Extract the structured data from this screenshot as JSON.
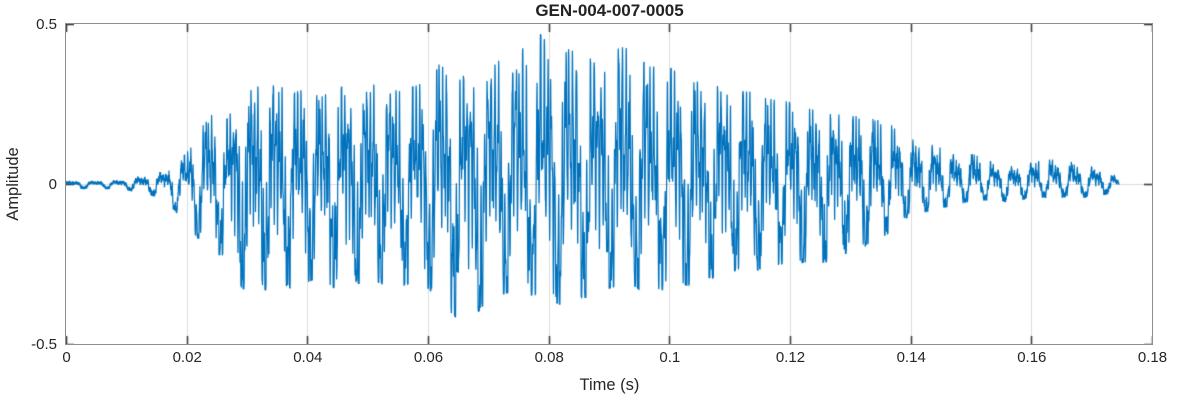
{
  "chart_data": {
    "type": "line",
    "title": "GEN-004-007-0005",
    "xlabel": "Time (s)",
    "ylabel": "Amplitude",
    "xlim": [
      0,
      0.18
    ],
    "ylim": [
      -0.5,
      0.5
    ],
    "xticks": [
      0,
      0.02,
      0.04,
      0.06,
      0.08,
      0.1,
      0.12,
      0.14,
      0.16,
      0.18
    ],
    "xtick_labels": [
      "0",
      "0.02",
      "0.04",
      "0.06",
      "0.08",
      "0.1",
      "0.12",
      "0.14",
      "0.16",
      "0.18"
    ],
    "yticks": [
      0.5,
      0,
      -0.5
    ],
    "ytick_labels": [
      "0.5",
      "0",
      "-0.5"
    ],
    "grid": {
      "vertical_at_xticks": true,
      "horizontal_at": [
        0
      ],
      "color": "#dcdcdc"
    },
    "line_color": "#0072BD",
    "axis_box_color": "#8e8e8e",
    "tick_color": "#3f3f3f",
    "text_color": "#262626",
    "background": "#ffffff",
    "legend": null,
    "signal": {
      "t_start": 0,
      "t_end": 0.1745,
      "pitch_hz": 258,
      "envelope_note": "triples of [time_s, min_amplitude, max_amplitude] read from the plot",
      "envelope": [
        [
          0.0,
          -0.012,
          0.006
        ],
        [
          0.002,
          -0.012,
          0.006
        ],
        [
          0.004,
          -0.012,
          0.006
        ],
        [
          0.006,
          -0.012,
          0.007
        ],
        [
          0.008,
          -0.012,
          0.008
        ],
        [
          0.01,
          -0.014,
          0.01
        ],
        [
          0.012,
          -0.022,
          0.018
        ],
        [
          0.014,
          -0.028,
          0.022
        ],
        [
          0.016,
          -0.042,
          0.032
        ],
        [
          0.018,
          -0.075,
          0.045
        ],
        [
          0.02,
          -0.125,
          0.095
        ],
        [
          0.022,
          -0.165,
          0.165
        ],
        [
          0.024,
          -0.215,
          0.21
        ],
        [
          0.026,
          -0.215,
          0.175
        ],
        [
          0.028,
          -0.3,
          0.24
        ],
        [
          0.03,
          -0.33,
          0.28
        ],
        [
          0.032,
          -0.32,
          0.3
        ],
        [
          0.034,
          -0.33,
          0.31
        ],
        [
          0.036,
          -0.305,
          0.295
        ],
        [
          0.038,
          -0.33,
          0.28
        ],
        [
          0.04,
          -0.3,
          0.295
        ],
        [
          0.042,
          -0.285,
          0.265
        ],
        [
          0.044,
          -0.315,
          0.28
        ],
        [
          0.046,
          -0.33,
          0.3
        ],
        [
          0.048,
          -0.3,
          0.285
        ],
        [
          0.05,
          -0.32,
          0.295
        ],
        [
          0.052,
          -0.3,
          0.31
        ],
        [
          0.054,
          -0.33,
          0.285
        ],
        [
          0.056,
          -0.31,
          0.29
        ],
        [
          0.058,
          -0.3,
          0.3
        ],
        [
          0.06,
          -0.32,
          0.315
        ],
        [
          0.062,
          -0.36,
          0.37
        ],
        [
          0.064,
          -0.4,
          0.33
        ],
        [
          0.066,
          -0.435,
          0.33
        ],
        [
          0.068,
          -0.4,
          0.34
        ],
        [
          0.07,
          -0.355,
          0.335
        ],
        [
          0.072,
          -0.34,
          0.395
        ],
        [
          0.074,
          -0.33,
          0.365
        ],
        [
          0.076,
          -0.345,
          0.425
        ],
        [
          0.078,
          -0.34,
          0.475
        ],
        [
          0.08,
          -0.36,
          0.43
        ],
        [
          0.082,
          -0.37,
          0.4
        ],
        [
          0.084,
          -0.35,
          0.42
        ],
        [
          0.086,
          -0.35,
          0.4
        ],
        [
          0.088,
          -0.33,
          0.365
        ],
        [
          0.09,
          -0.32,
          0.4
        ],
        [
          0.092,
          -0.31,
          0.43
        ],
        [
          0.094,
          -0.31,
          0.4
        ],
        [
          0.096,
          -0.34,
          0.38
        ],
        [
          0.098,
          -0.32,
          0.35
        ],
        [
          0.1,
          -0.33,
          0.36
        ],
        [
          0.102,
          -0.31,
          0.33
        ],
        [
          0.104,
          -0.31,
          0.32
        ],
        [
          0.106,
          -0.285,
          0.3
        ],
        [
          0.108,
          -0.29,
          0.3
        ],
        [
          0.11,
          -0.27,
          0.29
        ],
        [
          0.112,
          -0.26,
          0.285
        ],
        [
          0.114,
          -0.27,
          0.28
        ],
        [
          0.116,
          -0.25,
          0.26
        ],
        [
          0.118,
          -0.245,
          0.255
        ],
        [
          0.12,
          -0.24,
          0.25
        ],
        [
          0.122,
          -0.24,
          0.23
        ],
        [
          0.124,
          -0.235,
          0.225
        ],
        [
          0.126,
          -0.24,
          0.212
        ],
        [
          0.128,
          -0.22,
          0.21
        ],
        [
          0.13,
          -0.205,
          0.205
        ],
        [
          0.132,
          -0.195,
          0.21
        ],
        [
          0.134,
          -0.165,
          0.195
        ],
        [
          0.136,
          -0.155,
          0.19
        ],
        [
          0.138,
          -0.11,
          0.155
        ],
        [
          0.14,
          -0.095,
          0.135
        ],
        [
          0.142,
          -0.085,
          0.125
        ],
        [
          0.144,
          -0.075,
          0.115
        ],
        [
          0.146,
          -0.065,
          0.105
        ],
        [
          0.148,
          -0.055,
          0.075
        ],
        [
          0.15,
          -0.05,
          0.09
        ],
        [
          0.152,
          -0.045,
          0.085
        ],
        [
          0.154,
          -0.042,
          0.055
        ],
        [
          0.156,
          -0.05,
          0.046
        ],
        [
          0.158,
          -0.042,
          0.052
        ],
        [
          0.16,
          -0.04,
          0.062
        ],
        [
          0.162,
          -0.035,
          0.085
        ],
        [
          0.164,
          -0.04,
          0.065
        ],
        [
          0.166,
          -0.032,
          0.07
        ],
        [
          0.168,
          -0.04,
          0.05
        ],
        [
          0.17,
          -0.03,
          0.048
        ],
        [
          0.172,
          -0.028,
          0.04
        ],
        [
          0.174,
          -0.015,
          0.02
        ],
        [
          0.1745,
          -0.004,
          0.008
        ]
      ]
    }
  }
}
